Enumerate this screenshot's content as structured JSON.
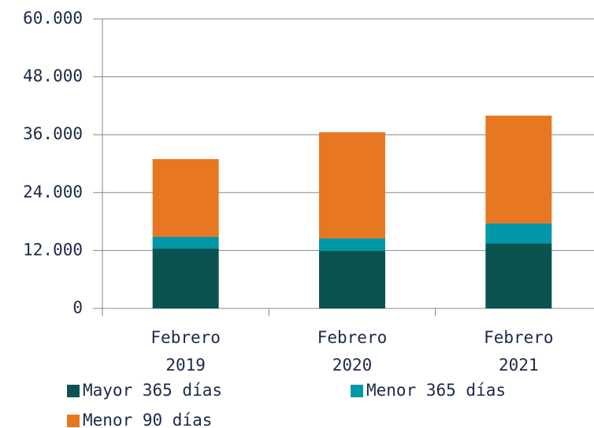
{
  "chart_data": {
    "type": "stacked_bar",
    "categories": [
      "Febrero 2019",
      "Febrero 2020",
      "Febrero 2021"
    ],
    "series": [
      {
        "name": "Mayor 365 días",
        "color": "#0b5351",
        "values": [
          12400,
          11900,
          13500
        ]
      },
      {
        "name": "Menor 365 días",
        "color": "#0097a7",
        "values": [
          2450,
          2600,
          4100
        ]
      },
      {
        "name": "Menor 90 días",
        "color": "#e87722",
        "values": [
          16100,
          22000,
          22350
        ]
      }
    ],
    "ylim": [
      0,
      60000
    ],
    "yticks": [
      0,
      {
        "value": 12000,
        "label": "12.000"
      },
      {
        "value": 24000,
        "label": "24.000"
      },
      {
        "value": 36000,
        "label": "36.000"
      },
      {
        "value": 48000,
        "label": "48.000"
      },
      {
        "value": 60000,
        "label": "60.000"
      }
    ],
    "grid": true
  }
}
